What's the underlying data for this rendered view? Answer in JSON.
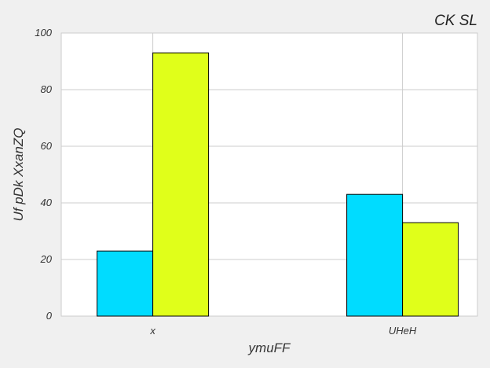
{
  "chart_data": {
    "type": "bar",
    "title": "CK SL",
    "xlabel": "ymuFF",
    "ylabel": "Uf pDk XxanZQ",
    "categories": [
      "x",
      "UHeH"
    ],
    "series": [
      {
        "values": [
          23,
          43
        ],
        "color": "#00dcff"
      },
      {
        "values": [
          93,
          33
        ],
        "color": "#e0ff1a"
      }
    ],
    "ylim": [
      0,
      100
    ],
    "yticks": [
      "0",
      "20",
      "40",
      "60",
      "80",
      "100"
    ],
    "grid": true,
    "legend": "none",
    "colors": {
      "background": "#f0f0f0",
      "plot_area": "#ffffff",
      "grid": "#cccccc",
      "bar_edge": "#000000"
    }
  }
}
